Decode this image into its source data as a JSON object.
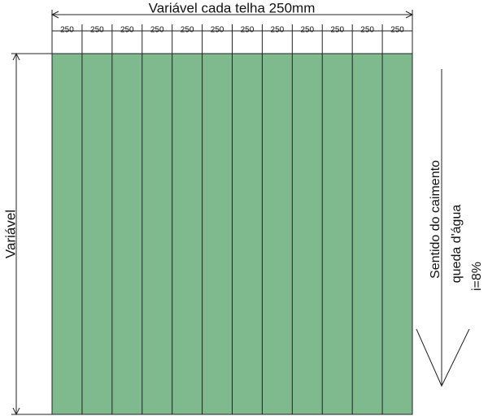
{
  "dimension_top": {
    "label": "Variável cada telha 250mm",
    "segments": [
      "250",
      "250",
      "250",
      "250",
      "250",
      "250",
      "250",
      "250",
      "250",
      "250",
      "250",
      "250"
    ]
  },
  "dimension_left": {
    "label": "Variável"
  },
  "flow_direction": {
    "lines": [
      "Sentido do caimento",
      "queda d'água",
      "i=8%"
    ]
  }
}
